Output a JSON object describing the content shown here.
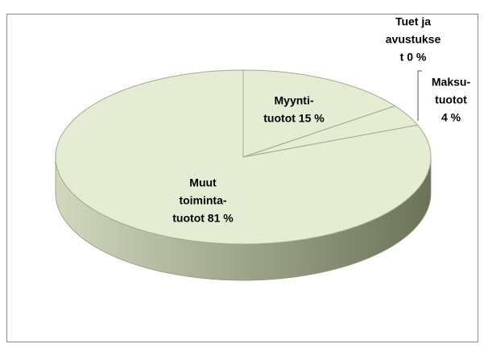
{
  "chart_data": {
    "type": "pie",
    "three_d": true,
    "categories": [
      "Myynti-tuotot",
      "Tuet ja avustukset",
      "Maksu-tuotot",
      "Muut toiminta-tuotot"
    ],
    "values": [
      15,
      0,
      4,
      81
    ],
    "data_labels": [
      [
        "Myynti-",
        "tuotot 15 %"
      ],
      [
        "Tuet ja",
        "avustukse",
        "t 0 %"
      ],
      [
        "Maksu-",
        "tuotot",
        "4 %"
      ],
      [
        "Muut",
        "toiminta-",
        "tuotot 81 %"
      ]
    ],
    "colors": [
      "#e4ecd4",
      "#e4ecd4",
      "#e4ecd4",
      "#e4ecd4"
    ],
    "side_colors": [
      "#d2d8bf",
      "#6a7258"
    ]
  }
}
